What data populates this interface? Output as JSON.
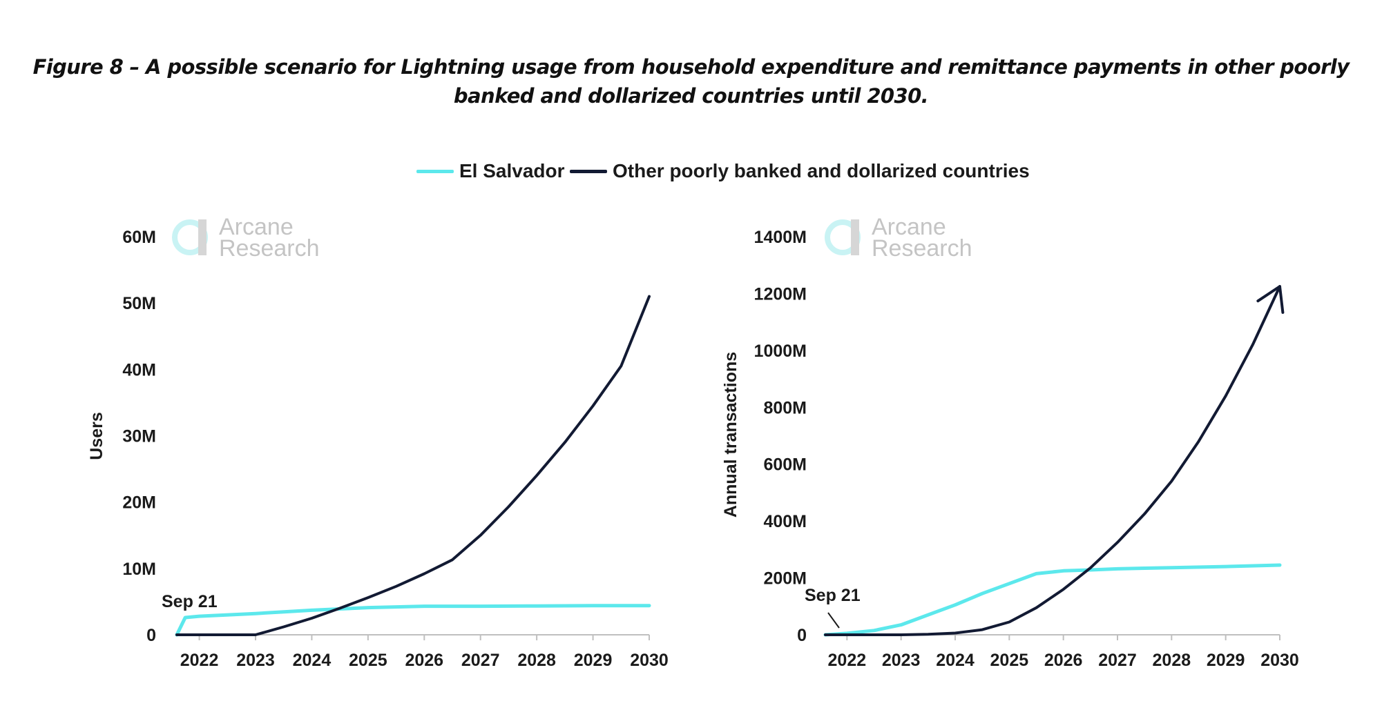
{
  "figure": {
    "title_line1": "Figure 8 – A possible scenario for Lightning usage from household expenditure and remittance payments in other poorly",
    "title_line2": "banked and dollarized countries until 2030."
  },
  "legend": [
    {
      "label": "El Salvador",
      "color": "#5ce8ec"
    },
    {
      "label": "Other poorly banked and dollarized countries",
      "color": "#121a33"
    }
  ],
  "watermark": {
    "line1": "Arcane",
    "line2": "Research"
  },
  "chart_data": [
    {
      "type": "line",
      "title": "",
      "xlabel": "",
      "ylabel": "Users",
      "xlim": [
        2021.6,
        2030
      ],
      "ylim": [
        0,
        60
      ],
      "x_ticks": [
        2022,
        2023,
        2024,
        2025,
        2026,
        2027,
        2028,
        2029,
        2030
      ],
      "y_ticks": [
        0,
        10,
        20,
        30,
        40,
        50,
        60
      ],
      "y_tick_labels": [
        "0",
        "10M",
        "20M",
        "30M",
        "40M",
        "50M",
        "60M"
      ],
      "annotation": {
        "text": "Sep 21",
        "x": 2021.75,
        "y": 2.6
      },
      "series": [
        {
          "name": "El Salvador",
          "color": "#5ce8ec",
          "x": [
            2021.6,
            2021.75,
            2022,
            2023,
            2024,
            2025,
            2026,
            2027,
            2028,
            2029,
            2030
          ],
          "values": [
            0,
            2.6,
            2.8,
            3.2,
            3.7,
            4.1,
            4.3,
            4.3,
            4.35,
            4.4,
            4.4
          ]
        },
        {
          "name": "Other poorly banked and dollarized countries",
          "color": "#121a33",
          "x": [
            2021.6,
            2023,
            2023.5,
            2024,
            2024.5,
            2025,
            2025.5,
            2026,
            2026.5,
            2027,
            2027.5,
            2028,
            2028.5,
            2029,
            2029.5,
            2030
          ],
          "values": [
            0,
            0,
            1.2,
            2.5,
            4.0,
            5.6,
            7.3,
            9.2,
            11.3,
            15.0,
            19.3,
            24.0,
            29.0,
            34.5,
            40.5,
            51.0
          ]
        }
      ]
    },
    {
      "type": "line",
      "title": "",
      "xlabel": "",
      "ylabel": "Annual transactions",
      "xlim": [
        2021.6,
        2030
      ],
      "ylim": [
        0,
        1400
      ],
      "x_ticks": [
        2022,
        2023,
        2024,
        2025,
        2026,
        2027,
        2028,
        2029,
        2030
      ],
      "y_ticks": [
        0,
        200,
        400,
        600,
        800,
        1000,
        1200,
        1400
      ],
      "y_tick_labels": [
        "0",
        "200M",
        "400M",
        "600M",
        "800M",
        "1000M",
        "1200M",
        "1400M"
      ],
      "annotation": {
        "text": "Sep 21",
        "x": 2021.9,
        "y": 2
      },
      "series": [
        {
          "name": "El Salvador",
          "color": "#5ce8ec",
          "x": [
            2021.6,
            2022,
            2022.5,
            2023,
            2023.5,
            2024,
            2024.5,
            2025,
            2025.5,
            2026,
            2026.5,
            2027,
            2028,
            2029,
            2030
          ],
          "values": [
            0,
            5,
            15,
            35,
            70,
            105,
            145,
            180,
            215,
            225,
            228,
            232,
            236,
            240,
            245
          ]
        },
        {
          "name": "Other poorly banked and dollarized countries",
          "color": "#121a33",
          "arrow_end": true,
          "x": [
            2021.6,
            2023,
            2023.5,
            2024,
            2024.5,
            2025,
            2025.5,
            2026,
            2026.5,
            2027,
            2027.5,
            2028,
            2028.5,
            2029,
            2029.5,
            2030
          ],
          "values": [
            0,
            0,
            2,
            6,
            18,
            45,
            95,
            160,
            235,
            325,
            425,
            540,
            680,
            840,
            1020,
            1225
          ]
        }
      ]
    }
  ]
}
